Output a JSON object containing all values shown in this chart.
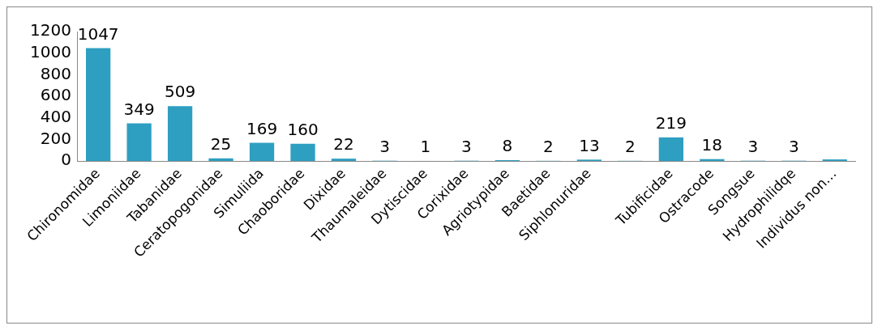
{
  "chart_data": {
    "type": "bar",
    "categories": [
      "Chironomidae",
      "Limoniidae",
      "Tabanidae",
      "Ceratopogonidae",
      "Simuliida",
      "Chaoboridae",
      "Dixidae",
      "Thaumaleidae",
      "Dytiscidae",
      "Corixidae",
      "Agriotypidae",
      "Baetidae",
      "Siphlonuridae",
      null,
      "Tubificidae",
      "Ostracode",
      "Songsue",
      "Hydrophilidqe",
      "Individus non…"
    ],
    "values": [
      1047,
      349,
      509,
      25,
      169,
      160,
      22,
      3,
      1,
      3,
      8,
      2,
      13,
      2,
      219,
      18,
      3,
      3,
      15
    ],
    "value_labels": [
      "1047",
      "349",
      "509",
      "25",
      "169",
      "160",
      "22",
      "3",
      "1",
      "3",
      "8",
      "2",
      "13",
      "2",
      "219",
      "18",
      "3",
      "3",
      null
    ],
    "color": "#2e9fc0",
    "ylim": [
      0,
      1200
    ],
    "yticks": [
      0,
      200,
      400,
      600,
      800,
      1000,
      1200
    ],
    "grid": false,
    "legend": false
  }
}
